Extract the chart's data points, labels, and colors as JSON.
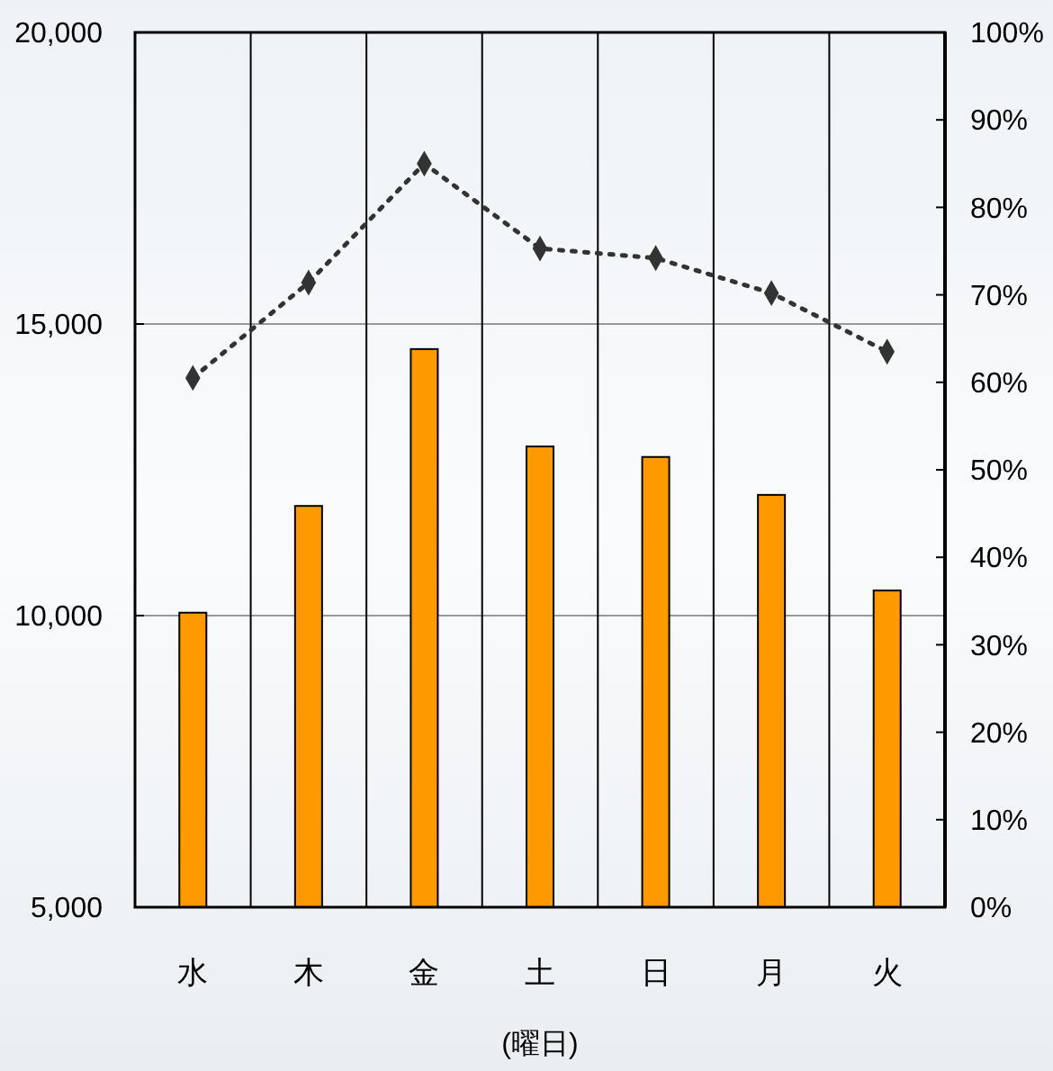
{
  "chart_data": {
    "type": "bar",
    "xlabel": "(曜日)",
    "categories": [
      "水",
      "木",
      "金",
      "土",
      "日",
      "月",
      "火"
    ],
    "series": [
      {
        "color": "#ff9900",
        "values": [
          10050,
          11880,
          14570,
          12900,
          12720,
          12070,
          10430
        ]
      },
      {
        "type": "line",
        "axis": "y2",
        "color": "#333333",
        "marker": "diamond",
        "line_style": "dotted",
        "values": [
          60.5,
          71.4,
          85.0,
          75.3,
          74.2,
          70.2,
          63.5
        ]
      }
    ],
    "ylim": [
      5000,
      20000
    ],
    "yticks": [
      {
        "value": 5000,
        "label": "5,000"
      },
      {
        "value": 10000,
        "label": "10,000"
      },
      {
        "value": 15000,
        "label": "15,000"
      },
      {
        "value": 20000,
        "label": "20,000"
      }
    ],
    "y2lim": [
      0,
      100
    ],
    "y2ticks": [
      {
        "value": 0,
        "label": "0%"
      },
      {
        "value": 10,
        "label": "10%"
      },
      {
        "value": 20,
        "label": "20%"
      },
      {
        "value": 30,
        "label": "30%"
      },
      {
        "value": 40,
        "label": "40%"
      },
      {
        "value": 50,
        "label": "50%"
      },
      {
        "value": 60,
        "label": "60%"
      },
      {
        "value": 70,
        "label": "70%"
      },
      {
        "value": 80,
        "label": "80%"
      },
      {
        "value": 90,
        "label": "90%"
      },
      {
        "value": 100,
        "label": "100%"
      }
    ],
    "grid": true
  }
}
